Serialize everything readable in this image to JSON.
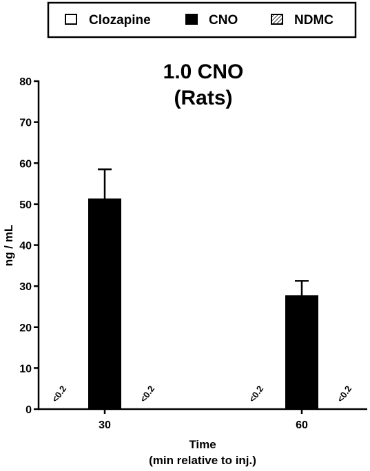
{
  "chart_data": {
    "type": "bar",
    "title_line1": "1.0 CNO",
    "title_line2": "(Rats)",
    "xlabel_line1": "Time",
    "xlabel_line2": "(min relative to inj.)",
    "ylabel": "ng / mL",
    "ylim": [
      0,
      80
    ],
    "yticks": [
      0,
      10,
      20,
      30,
      40,
      50,
      60,
      70,
      80
    ],
    "categories": [
      "30",
      "60"
    ],
    "legend_position": "top",
    "series": [
      {
        "name": "Clozapine",
        "pattern": "open",
        "values": [
          null,
          null
        ],
        "labels": [
          "<0.2",
          "<0.2"
        ]
      },
      {
        "name": "CNO",
        "pattern": "solid",
        "color": "#000000",
        "values": [
          51.3,
          27.7
        ],
        "error": [
          7.2,
          3.6
        ]
      },
      {
        "name": "NDMC",
        "pattern": "hatched",
        "values": [
          null,
          null
        ],
        "labels": [
          "<0.2",
          "<0.2"
        ]
      }
    ]
  }
}
